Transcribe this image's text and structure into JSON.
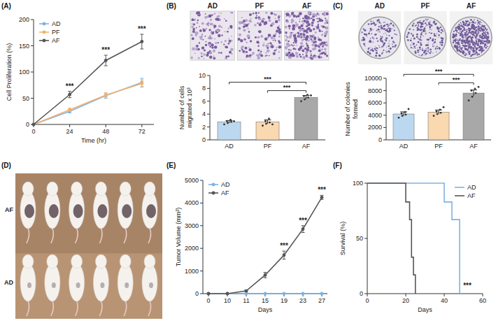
{
  "chart_data": [
    {
      "panel": "(A)",
      "type": "line",
      "x": [
        0,
        24,
        48,
        72
      ],
      "xlim": [
        0,
        80
      ],
      "xticks": [
        0,
        24,
        48,
        72
      ],
      "ylim": [
        0,
        200
      ],
      "yticks": [
        0,
        50,
        100,
        150,
        200
      ],
      "x_label": "Time (hr)",
      "y_label": "Cell Proliferation (%)",
      "legend": "upper left",
      "marker": "circle",
      "series": [
        {
          "name": "AD",
          "color": "#7fb2e5",
          "values": [
            0,
            25,
            55,
            80
          ],
          "errors": [
            0,
            3,
            5,
            8
          ]
        },
        {
          "name": "PF",
          "color": "#f4b16b",
          "values": [
            0,
            28,
            56,
            78
          ],
          "errors": [
            0,
            3,
            4,
            7
          ]
        },
        {
          "name": "AF",
          "color": "#555555",
          "values": [
            0,
            57,
            122,
            158
          ],
          "errors": [
            0,
            6,
            10,
            14
          ]
        }
      ],
      "annotations": [
        {
          "x": 24,
          "text": "***"
        },
        {
          "x": 48,
          "text": "***"
        },
        {
          "x": 72,
          "text": "***"
        }
      ]
    },
    {
      "panel": "(B)",
      "type": "bar",
      "categories": [
        "AD",
        "PF",
        "AF"
      ],
      "values": [
        2.8,
        2.8,
        6.6
      ],
      "errors": [
        0.2,
        0.3,
        0.3
      ],
      "colors": [
        "#bcd8f1",
        "#fad8b0",
        "#a8a8a8"
      ],
      "ylim": [
        0,
        10
      ],
      "yticks": [
        0,
        2,
        4,
        6,
        8,
        10
      ],
      "y_label": "Number of cells migrated x 10³",
      "points": [
        [
          2.4,
          2.6,
          2.8,
          2.9,
          3.1,
          2.9
        ],
        [
          2.2,
          2.5,
          2.7,
          2.9,
          3.3,
          2.4
        ],
        [
          6.0,
          6.3,
          6.6,
          6.8,
          7.0,
          6.9
        ]
      ],
      "comparisons": [
        {
          "pair": [
            "AD",
            "AF"
          ],
          "text": "***"
        },
        {
          "pair": [
            "PF",
            "AF"
          ],
          "text": "***"
        }
      ]
    },
    {
      "panel": "(C)",
      "type": "bar",
      "categories": [
        "AD",
        "PF",
        "AF"
      ],
      "values": [
        4200,
        4500,
        7600
      ],
      "errors": [
        350,
        350,
        500
      ],
      "colors": [
        "#bcd8f1",
        "#fad8b0",
        "#a8a8a8"
      ],
      "ylim": [
        0,
        10000
      ],
      "yticks": [
        0,
        2000,
        4000,
        6000,
        8000,
        10000
      ],
      "y_label": "Number of colonies formed",
      "points": [
        [
          3600,
          3900,
          4100,
          4300,
          4500,
          5000
        ],
        [
          3900,
          4200,
          4400,
          4600,
          4900,
          5300
        ],
        [
          6400,
          7000,
          7600,
          8000,
          8300,
          8600
        ]
      ],
      "comparisons": [
        {
          "pair": [
            "AD",
            "AF"
          ],
          "text": "***"
        },
        {
          "pair": [
            "PF",
            "AF"
          ],
          "text": "***"
        }
      ]
    },
    {
      "panel": "(D)",
      "type": "image",
      "labels": [
        "AF",
        "AD"
      ]
    },
    {
      "panel": "(E)",
      "type": "line",
      "categories": [
        "0",
        "10",
        "11",
        "15",
        "19",
        "23",
        "27"
      ],
      "ylim": [
        0,
        5000
      ],
      "yticks": [
        0,
        1000,
        2000,
        3000,
        4000,
        5000
      ],
      "x_label": "Days",
      "y_label": "Tumor Volume (mm³)",
      "legend": "upper left",
      "marker": "circle",
      "series": [
        {
          "name": "AD",
          "color": "#7fb2e5",
          "values": [
            0,
            0,
            0,
            0,
            0,
            0,
            0
          ],
          "errors": [
            0,
            0,
            0,
            0,
            0,
            0,
            0
          ]
        },
        {
          "name": "AF",
          "color": "#555555",
          "values": [
            0,
            0,
            120,
            820,
            1700,
            2850,
            4250
          ],
          "errors": [
            0,
            0,
            40,
            120,
            180,
            150,
            90
          ]
        }
      ],
      "annotations": [
        {
          "x": "19",
          "text": "***"
        },
        {
          "x": "23",
          "text": "***"
        },
        {
          "x": "27",
          "text": "***"
        }
      ]
    },
    {
      "panel": "(F)",
      "type": "line",
      "line_style": "step",
      "xlim": [
        0,
        60
      ],
      "xticks": [
        0,
        20,
        40,
        60
      ],
      "ylim": [
        0,
        100
      ],
      "yticks": [
        0,
        50,
        100
      ],
      "x_label": "Days",
      "y_label": "Survival (%)",
      "legend": "upper right",
      "series": [
        {
          "name": "AD",
          "color": "#7fb2e5",
          "x": [
            0,
            40,
            44,
            48
          ],
          "values": [
            100,
            83,
            67,
            0
          ]
        },
        {
          "name": "AF",
          "color": "#555555",
          "x": [
            0,
            20,
            22,
            23,
            24,
            25
          ],
          "values": [
            100,
            83,
            67,
            33,
            17,
            0
          ]
        }
      ],
      "annotations": [
        {
          "x": 52,
          "y": 5,
          "text": "***"
        }
      ]
    }
  ]
}
